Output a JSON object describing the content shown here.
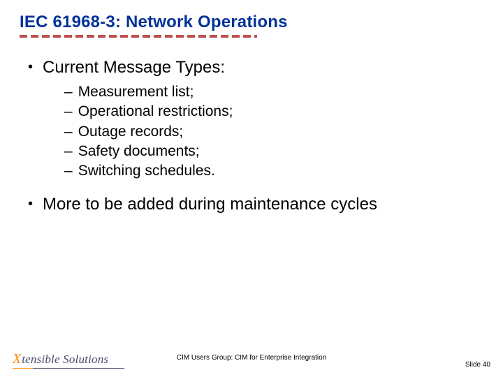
{
  "title": "IEC 61968-3: Network Operations",
  "colors": {
    "title_color": "#003399",
    "dash_color": "#c0504d",
    "text_color": "#000000",
    "logo_x_color": "#ff8c00",
    "logo_rest_color": "#4a4a6a",
    "background": "#ffffff"
  },
  "typography": {
    "title_fontsize": 24,
    "l1_fontsize": 24,
    "l2_fontsize": 21,
    "footer_fontsize": 10
  },
  "bullets": {
    "item0": {
      "text": "Current Message Types:",
      "sub": {
        "s0": "Measurement list;",
        "s1": "Operational restrictions;",
        "s2": "Outage records;",
        "s3": "Safety documents;",
        "s4": "Switching schedules."
      }
    },
    "item1": {
      "text": "More to be added during maintenance cycles"
    }
  },
  "footer": {
    "logo_x": "X",
    "logo_rest": "tensible Solutions",
    "center": "CIM Users Group: CIM for Enterprise Integration",
    "right": "Slide 40"
  }
}
